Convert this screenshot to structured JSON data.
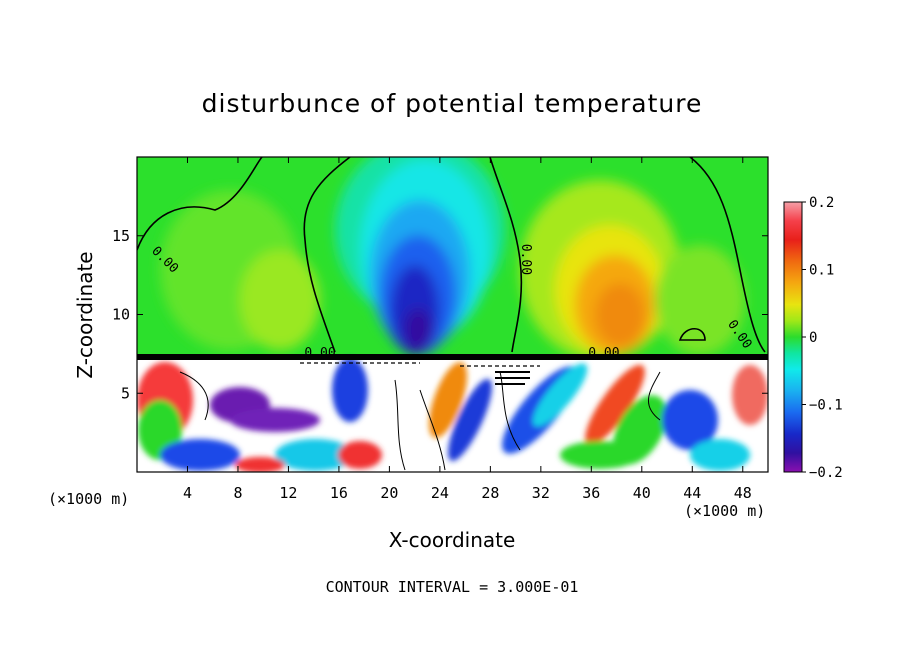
{
  "chart_data": {
    "type": "heatmap",
    "title": "disturbunce of potential temperature",
    "xlabel": "X-coordinate",
    "ylabel": "Z-coordinate",
    "x_unit_label_left": "(×1000 m)",
    "x_unit_label_right": "(×1000 m)",
    "xlim": [
      0,
      50
    ],
    "ylim": [
      0,
      20
    ],
    "x_ticks": [
      4,
      8,
      12,
      16,
      20,
      24,
      28,
      32,
      36,
      40,
      44,
      48
    ],
    "x_tick_labels": [
      "4",
      "8",
      "12",
      "16",
      "20",
      "24",
      "28",
      "32",
      "36",
      "40",
      "44",
      "48"
    ],
    "y_ticks": [
      5,
      10,
      15
    ],
    "y_tick_labels": [
      "5",
      "10",
      "15"
    ],
    "colorbar": {
      "range": [
        -0.2,
        0.2
      ],
      "ticks": [
        0.2,
        0.1,
        0,
        -0.1,
        -0.2
      ],
      "tick_labels": [
        "0.2",
        "0.1",
        "0",
        "−0.1",
        "−0.2"
      ]
    },
    "contour_labels": [
      {
        "text": "0.00",
        "x": 2.0,
        "z": 13.3,
        "angle": 45
      },
      {
        "text": "0.00",
        "x": 30.5,
        "z": 13.5,
        "angle": 90
      },
      {
        "text": "0.00",
        "x": 47.5,
        "z": 8.6,
        "angle": 55
      },
      {
        "text": "0.00",
        "x": 14.5,
        "z": 7.3,
        "angle": 0
      },
      {
        "text": "0.00",
        "x": 37.0,
        "z": 7.3,
        "angle": 0
      }
    ],
    "footer": "CONTOUR INTERVAL =  3.000E-01"
  }
}
